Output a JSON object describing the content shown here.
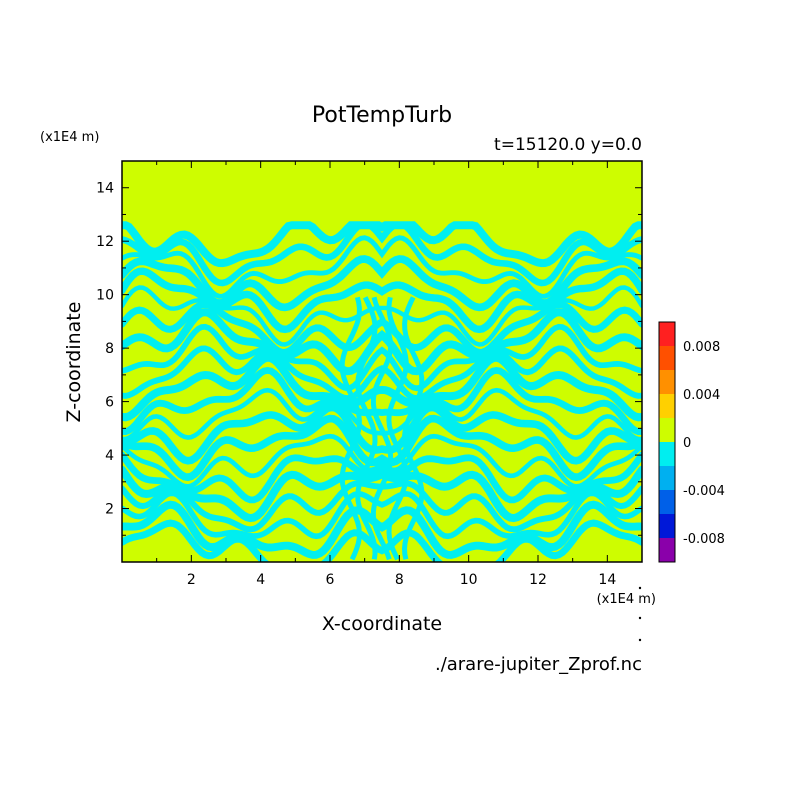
{
  "chart_data": {
    "type": "heatmap",
    "title": "PotTempTurb",
    "subtitle": "t=15120.0 y=0.0",
    "xlabel": "X-coordinate",
    "ylabel": "Z-coordinate",
    "x_unit": "(x1E4 m)",
    "y_unit": "(x1E4 m)",
    "source_file": "./arare-jupiter_Zprof.nc",
    "xlim": [
      0,
      15
    ],
    "ylim": [
      0,
      15
    ],
    "x_ticks": [
      "2",
      "4",
      "6",
      "8",
      "10",
      "12",
      "14"
    ],
    "y_ticks": [
      "2",
      "4",
      "6",
      "8",
      "10",
      "12",
      "14"
    ],
    "colorbar": {
      "range": [
        -0.01,
        0.01
      ],
      "tick_labels": [
        "0.008",
        "0.004",
        "0",
        "-0.004",
        "-0.008"
      ],
      "tick_values": [
        0.008,
        0.004,
        0,
        -0.004,
        -0.008
      ],
      "levels": [
        -0.01,
        -0.008,
        -0.006,
        -0.004,
        -0.002,
        0,
        0.002,
        0.004,
        0.006,
        0.008,
        0.01
      ],
      "colors": [
        "#8a00aa",
        "#0018d8",
        "#0060e8",
        "#00b0f0",
        "#00eef0",
        "#cefd00",
        "#ffd000",
        "#ff9000",
        "#ff5000",
        "#ff2020",
        "#ffb0b8"
      ]
    },
    "dominant_bands": {
      "negative_color": "#00eef0",
      "positive_color": "#cefd00"
    }
  }
}
